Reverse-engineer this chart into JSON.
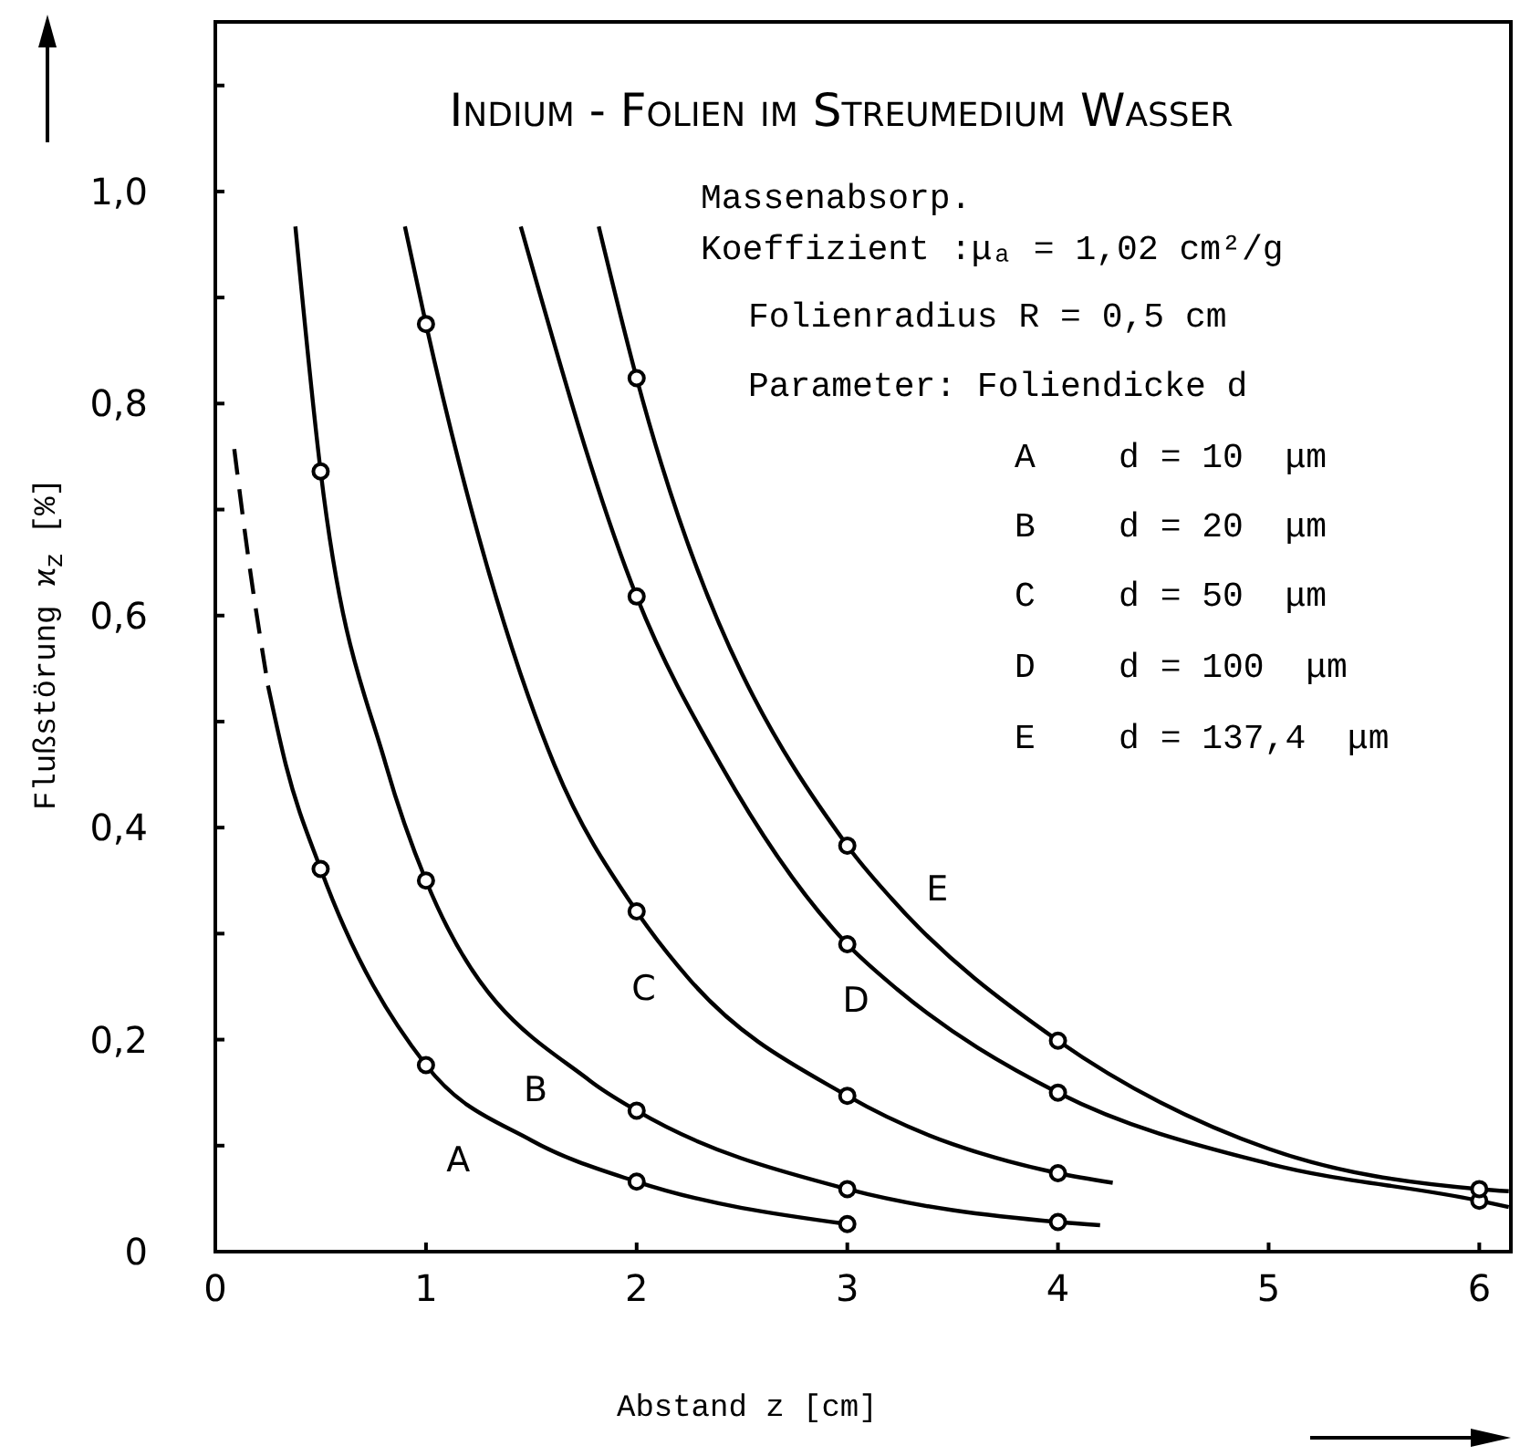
{
  "chart_data": {
    "type": "line",
    "title": "Indium - Folien im Streumedium Wasser",
    "xlabel": "Abstand z [cm]",
    "ylabel": "Flußstörung ϰ$_{z}$ [%]",
    "xlim": [
      0,
      6.15
    ],
    "xticks": [
      0,
      1,
      2,
      3,
      4,
      5,
      6
    ],
    "ylim": [
      0,
      1.16
    ],
    "yticks": [
      0,
      {
        "value": 0.1,
        "label": null
      },
      {
        "value": 0.2,
        "label": "0,2"
      },
      {
        "value": 0.3,
        "label": null
      },
      {
        "value": 0.4,
        "label": "0,4"
      },
      {
        "value": 0.5,
        "label": null
      },
      {
        "value": 0.6,
        "label": "0,6"
      },
      {
        "value": 0.7,
        "label": null
      },
      {
        "value": 0.8,
        "label": "0,8"
      },
      {
        "value": 0.9,
        "label": null
      },
      {
        "value": 1.0,
        "label": "1,0"
      },
      {
        "value": 1.1,
        "label": null
      }
    ],
    "line_style": "solid",
    "marker": "none",
    "series": [
      {
        "color": "#000000",
        "line_style": "dashed",
        "x": [
          0.09,
          0.16,
          0.25
        ],
        "values": [
          0.757,
          0.65,
          0.534
        ]
      },
      {
        "color": "#000000",
        "x": [
          0.25,
          0.335,
          0.5,
          1,
          1.5,
          2,
          3
        ],
        "values": [
          0.534,
          0.459,
          0.361,
          0.176,
          0.105,
          0.066,
          0.026
        ]
      },
      {
        "color": "#000000",
        "x": [
          0.38,
          0.5,
          0.81,
          1,
          1.78,
          2,
          3,
          4,
          4.2
        ],
        "values": [
          0.967,
          0.736,
          0.459,
          0.35,
          0.161,
          0.133,
          0.059,
          0.028,
          0.025
        ]
      },
      {
        "color": "#000000",
        "x": [
          0.9,
          1,
          1.61,
          2,
          2.25,
          3,
          4,
          4.26
        ],
        "values": [
          0.967,
          0.875,
          0.459,
          0.321,
          0.257,
          0.147,
          0.074,
          0.065
        ]
      },
      {
        "color": "#000000",
        "x": [
          1.45,
          2,
          2.4,
          3,
          3.24,
          4,
          5,
          6,
          6.14
        ],
        "values": [
          0.967,
          0.618,
          0.459,
          0.29,
          0.247,
          0.15,
          0.083,
          0.048,
          0.042
        ]
      },
      {
        "color": "#000000",
        "x": [
          1.82,
          2,
          3,
          3.21,
          4,
          5,
          6,
          6.14
        ],
        "values": [
          0.967,
          0.824,
          0.383,
          0.333,
          0.199,
          0.097,
          0.059,
          0.057
        ]
      },
      {
        "type": "scatter",
        "color": "#000000",
        "marker": "circle",
        "x": [
          0.5,
          1,
          2,
          3
        ],
        "values": [
          0.361,
          0.176,
          0.066,
          0.026
        ]
      },
      {
        "type": "scatter",
        "color": "#000000",
        "marker": "circle",
        "x": [
          0.5,
          1,
          2,
          3,
          4
        ],
        "values": [
          0.736,
          0.35,
          0.133,
          0.059,
          0.028
        ]
      },
      {
        "type": "scatter",
        "color": "#000000",
        "marker": "circle",
        "x": [
          1,
          2,
          3,
          4
        ],
        "values": [
          0.875,
          0.321,
          0.147,
          0.074
        ]
      },
      {
        "type": "scatter",
        "color": "#000000",
        "marker": "circle",
        "x": [
          2,
          3,
          4,
          6
        ],
        "values": [
          0.618,
          0.29,
          0.15,
          0.048
        ]
      },
      {
        "type": "scatter",
        "color": "#000000",
        "marker": "circle",
        "x": [
          2,
          3,
          4,
          6
        ],
        "values": [
          0.824,
          0.383,
          0.199,
          0.059
        ]
      }
    ],
    "annotations": [
      {
        "text": "A",
        "x": 1.5,
        "y": 0.105
      },
      {
        "text": "B",
        "x": 1.78,
        "y": 0.161
      },
      {
        "text": "C",
        "x": 2.25,
        "y": 0.257
      },
      {
        "text": "D",
        "x": 3.24,
        "y": 0.247
      },
      {
        "text": "E",
        "x": 3.21,
        "y": 0.333
      },
      "Massenabsorp.",
      "Koeffizient :μₐ = 1,02 cm²/g",
      "Folienradius R = 0,5 cm",
      "Parameter: Foliendicke d",
      "A    d = 10  μm",
      "B    d = 20  μm",
      "C    d = 50  μm",
      "D    d = 100  μm",
      "E    d = 137,4  μm"
    ]
  }
}
